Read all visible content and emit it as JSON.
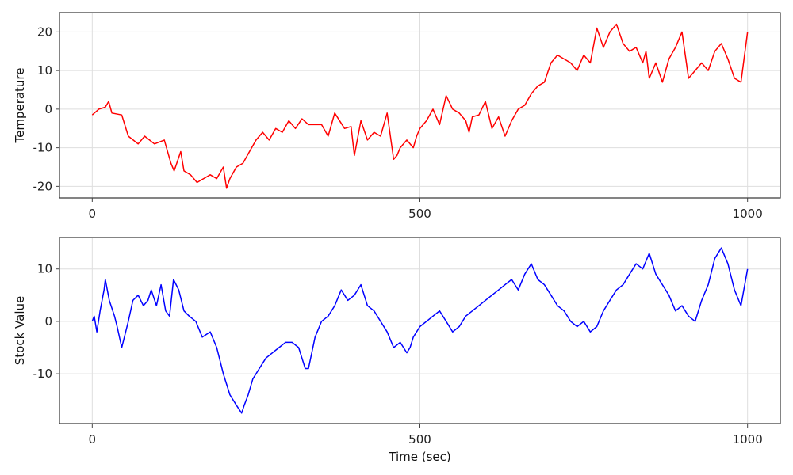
{
  "chart_data": [
    {
      "type": "line",
      "title": "",
      "xlabel": "",
      "ylabel": "Temperature",
      "xlim": [
        -50,
        1050
      ],
      "ylim": [
        -23,
        25
      ],
      "xticks": [
        0,
        500,
        1000
      ],
      "xtick_labels": [
        "0",
        "500",
        "1000"
      ],
      "yticks": [
        -20,
        -10,
        0,
        10,
        20
      ],
      "ytick_labels": [
        "-20",
        "-10",
        "0",
        "10",
        "20"
      ],
      "grid": true,
      "legend": "none",
      "series": [
        {
          "color": "#ff0000",
          "x": [
            0,
            10,
            20,
            25,
            30,
            45,
            55,
            70,
            80,
            95,
            110,
            120,
            125,
            135,
            140,
            150,
            160,
            170,
            180,
            190,
            200,
            205,
            210,
            220,
            230,
            240,
            250,
            260,
            270,
            280,
            290,
            300,
            310,
            320,
            330,
            340,
            350,
            360,
            370,
            385,
            395,
            400,
            410,
            420,
            430,
            440,
            450,
            460,
            465,
            470,
            480,
            490,
            495,
            500,
            510,
            520,
            530,
            540,
            550,
            560,
            570,
            575,
            580,
            590,
            600,
            610,
            620,
            630,
            640,
            650,
            655,
            660,
            670,
            680,
            690,
            700,
            710,
            720,
            730,
            740,
            750,
            760,
            770,
            780,
            790,
            800,
            810,
            820,
            830,
            840,
            845,
            850,
            860,
            870,
            880,
            890,
            900,
            910,
            920,
            930,
            940,
            950,
            960,
            970,
            980,
            990,
            1000
          ],
          "y": [
            -1.5,
            0,
            0.5,
            2,
            -1,
            -1.5,
            -7,
            -9,
            -7,
            -9,
            -8,
            -14,
            -16,
            -11,
            -16,
            -17,
            -19,
            -18,
            -17,
            -18,
            -15,
            -20.5,
            -18,
            -15,
            -14,
            -11,
            -8,
            -6,
            -8,
            -5,
            -6,
            -3,
            -5,
            -2.5,
            -4,
            -4,
            -4,
            -7,
            -1,
            -5,
            -4.5,
            -12,
            -3,
            -8,
            -6,
            -7,
            -1,
            -13,
            -12,
            -10,
            -8,
            -10,
            -7,
            -5,
            -3,
            0,
            -4,
            3.5,
            0,
            -1,
            -3,
            -6,
            -2,
            -1.5,
            2,
            -5,
            -2,
            -7,
            -3,
            0,
            0.5,
            1,
            4,
            6,
            7,
            12,
            14,
            13,
            12,
            10,
            14,
            12,
            21,
            16,
            20,
            22,
            17,
            15,
            16,
            12,
            15,
            8,
            12,
            7,
            13,
            16,
            20,
            8,
            10,
            12,
            10,
            15,
            17,
            13,
            8,
            7,
            20
          ],
          "x_extra": [],
          "note": ""
        }
      ]
    },
    {
      "type": "line",
      "title": "",
      "xlabel": "Time (sec)",
      "ylabel": "Stock Value",
      "xlim": [
        -50,
        1050
      ],
      "ylim": [
        -19.5,
        16
      ],
      "xticks": [
        0,
        500,
        1000
      ],
      "xtick_labels": [
        "0",
        "500",
        "1000"
      ],
      "yticks": [
        -10,
        0,
        10
      ],
      "ytick_labels": [
        "-10",
        "0",
        "10"
      ],
      "grid": true,
      "legend": "none",
      "series": [
        {
          "color": "#0000ff",
          "x": [
            0,
            3,
            7,
            12,
            18,
            20,
            26,
            34,
            38,
            45,
            55,
            62,
            70,
            78,
            85,
            90,
            98,
            105,
            112,
            118,
            124,
            132,
            140,
            148,
            158,
            168,
            180,
            190,
            200,
            210,
            220,
            228,
            232,
            238,
            245,
            255,
            265,
            275,
            285,
            295,
            305,
            315,
            325,
            330,
            340,
            350,
            360,
            370,
            380,
            390,
            400,
            410,
            420,
            430,
            440,
            450,
            460,
            470,
            480,
            485,
            490,
            500,
            510,
            520,
            530,
            540,
            550,
            560,
            570,
            580,
            590,
            600,
            610,
            620,
            630,
            640,
            650,
            660,
            670,
            680,
            690,
            700,
            710,
            720,
            730,
            740,
            750,
            760,
            770,
            780,
            790,
            800,
            810,
            820,
            830,
            840,
            850,
            860,
            870,
            880,
            890,
            900,
            910,
            920,
            930,
            940,
            950,
            960,
            970,
            980,
            990,
            1000
          ],
          "y": [
            0,
            1,
            -2,
            2,
            6,
            8,
            4,
            1,
            -1,
            -5,
            0,
            4,
            5,
            3,
            4,
            6,
            3,
            7,
            2,
            1,
            8,
            6,
            2,
            1,
            0,
            -3,
            -2,
            -5,
            -10,
            -14,
            -16,
            -17.5,
            -16,
            -14,
            -11,
            -9,
            -7,
            -6,
            -5,
            -4,
            -4,
            -5,
            -9,
            -9,
            -3,
            0,
            1,
            3,
            6,
            4,
            5,
            7,
            3,
            2,
            0,
            -2,
            -5,
            -4,
            -6,
            -5,
            -3,
            -1,
            0,
            1,
            2,
            0,
            -2,
            -1,
            1,
            2,
            3,
            4,
            5,
            6,
            7,
            8,
            6,
            9,
            11,
            8,
            7,
            5,
            3,
            2,
            0,
            -1,
            0,
            -2,
            -1,
            2,
            4,
            6,
            7,
            9,
            11,
            10,
            13,
            9,
            7,
            5,
            2,
            3,
            1,
            0,
            4,
            7,
            12,
            14,
            11,
            6,
            3,
            10
          ],
          "x_extra": [],
          "note": ""
        }
      ]
    }
  ]
}
